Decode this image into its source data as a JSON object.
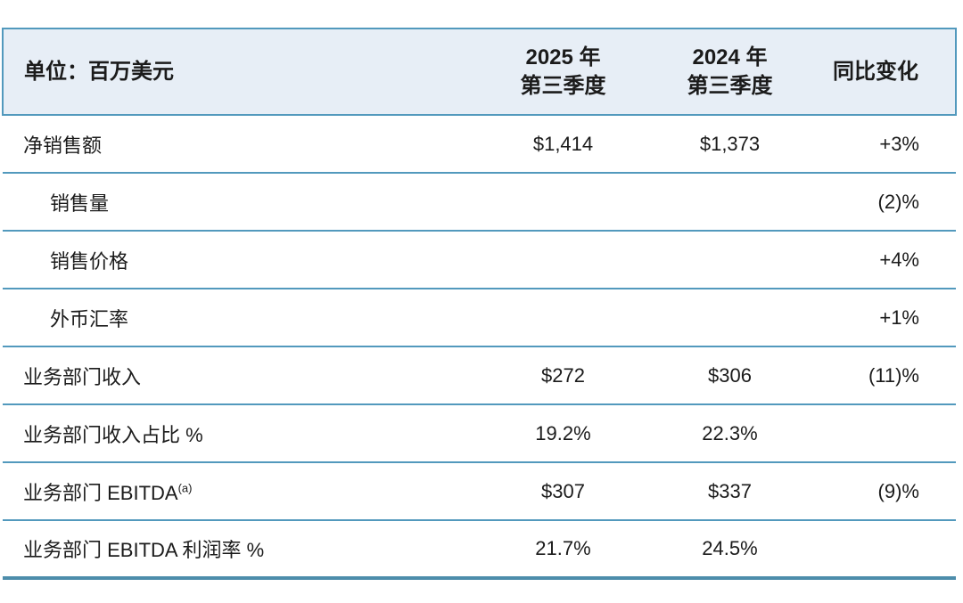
{
  "colors": {
    "divider_blue": "#5299bd",
    "bottom_rule_blue": "#4d8dab",
    "header_background": "#e7eef6",
    "text": "#1b1b1b",
    "page_background": "#ffffff"
  },
  "table": {
    "header": {
      "unit_label": "单位：百万美元",
      "col_2025_line1": "2025 年",
      "col_2025_line2": "第三季度",
      "col_2024_line1": "2024 年",
      "col_2024_line2": "第三季度",
      "col_change": "同比变化"
    },
    "rows": [
      {
        "label": "净销售额",
        "indent": false,
        "q3_2025": "$1,414",
        "q3_2024": "$1,373",
        "yoy": "+3%"
      },
      {
        "label": "销售量",
        "indent": true,
        "q3_2025": "",
        "q3_2024": "",
        "yoy": "(2)%"
      },
      {
        "label": "销售价格",
        "indent": true,
        "q3_2025": "",
        "q3_2024": "",
        "yoy": "+4%"
      },
      {
        "label": "外币汇率",
        "indent": true,
        "q3_2025": "",
        "q3_2024": "",
        "yoy": "+1%"
      },
      {
        "label": "业务部门收入",
        "indent": false,
        "q3_2025": "$272",
        "q3_2024": "$306",
        "yoy": "(11)%"
      },
      {
        "label": "业务部门收入占比 %",
        "indent": false,
        "q3_2025": "19.2%",
        "q3_2024": "22.3%",
        "yoy": ""
      },
      {
        "label": "业务部门 EBITDA",
        "superscript": "(a)",
        "indent": false,
        "q3_2025": "$307",
        "q3_2024": "$337",
        "yoy": "(9)%"
      },
      {
        "label": "业务部门 EBITDA 利润率 %",
        "indent": false,
        "q3_2025": "21.7%",
        "q3_2024": "24.5%",
        "yoy": ""
      }
    ]
  }
}
